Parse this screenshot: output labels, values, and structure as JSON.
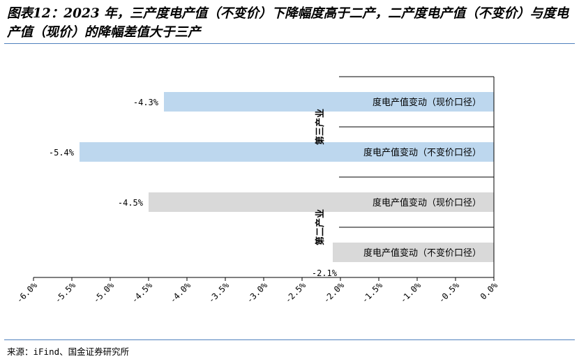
{
  "title": "图表12：2023 年，三产度电产值（不变价）下降幅度高于二产，二产度电产值（不变价）与度电产值（现价）的降幅差值大于三产",
  "source": "来源：iFind、国金证券研究所",
  "chart_data": {
    "type": "bar",
    "orientation": "horizontal",
    "xlim": [
      -6.0,
      0.0
    ],
    "xticks": [
      "-6.0%",
      "-5.5%",
      "-5.0%",
      "-4.5%",
      "-4.0%",
      "-3.5%",
      "-3.0%",
      "-2.5%",
      "-2.0%",
      "-1.5%",
      "-1.0%",
      "-0.5%",
      "0.0%"
    ],
    "groups": [
      {
        "name": "第三产业",
        "bars": [
          {
            "category": "度电产值变动（现价口径）",
            "value": -4.3,
            "label": "-4.3%",
            "color": "#bdd7ee"
          },
          {
            "category": "度电产值变动（不变价口径）",
            "value": -5.4,
            "label": "-5.4%",
            "color": "#bdd7ee"
          }
        ]
      },
      {
        "name": "第二产业",
        "bars": [
          {
            "category": "度电产值变动（现价口径）",
            "value": -4.5,
            "label": "-4.5%",
            "color": "#d9d9d9"
          },
          {
            "category": "度电产值变动（不变价口径）",
            "value": -2.1,
            "label": "-2.1%",
            "color": "#d9d9d9"
          }
        ]
      }
    ],
    "grid": false,
    "legend": "none"
  }
}
